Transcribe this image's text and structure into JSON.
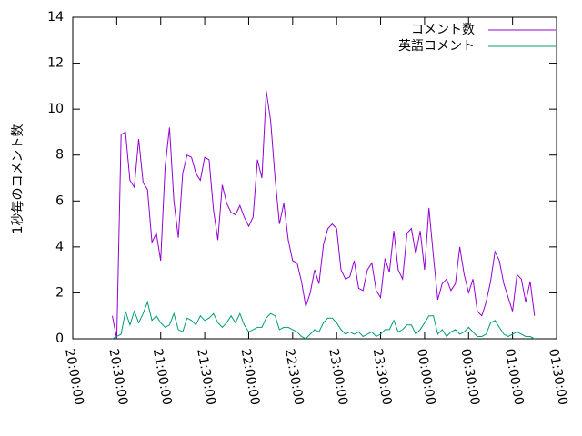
{
  "chart_data": {
    "type": "line",
    "ylabel": "1秒毎のコメント数",
    "x": [
      "20:27:00",
      "20:30:00",
      "20:33:00",
      "20:36:00",
      "20:39:00",
      "20:42:00",
      "20:45:00",
      "20:48:00",
      "20:51:00",
      "20:54:00",
      "20:57:00",
      "21:00:00",
      "21:03:00",
      "21:06:00",
      "21:09:00",
      "21:12:00",
      "21:15:00",
      "21:18:00",
      "21:21:00",
      "21:24:00",
      "21:27:00",
      "21:30:00",
      "21:33:00",
      "21:36:00",
      "21:39:00",
      "21:42:00",
      "21:45:00",
      "21:48:00",
      "21:51:00",
      "21:54:00",
      "21:57:00",
      "22:00:00",
      "22:03:00",
      "22:06:00",
      "22:09:00",
      "22:12:00",
      "22:15:00",
      "22:18:00",
      "22:21:00",
      "22:24:00",
      "22:27:00",
      "22:30:00",
      "22:33:00",
      "22:36:00",
      "22:39:00",
      "22:42:00",
      "22:45:00",
      "22:48:00",
      "22:51:00",
      "22:54:00",
      "22:57:00",
      "23:00:00",
      "23:03:00",
      "23:06:00",
      "23:09:00",
      "23:12:00",
      "23:15:00",
      "23:18:00",
      "23:21:00",
      "23:24:00",
      "23:27:00",
      "23:30:00",
      "23:33:00",
      "23:36:00",
      "23:39:00",
      "23:42:00",
      "23:45:00",
      "23:48:00",
      "23:51:00",
      "23:54:00",
      "23:57:00",
      "00:00:00",
      "00:03:00",
      "00:06:00",
      "00:09:00",
      "00:12:00",
      "00:15:00",
      "00:18:00",
      "00:21:00",
      "00:24:00",
      "00:27:00",
      "00:30:00",
      "00:33:00",
      "00:36:00",
      "00:39:00",
      "00:42:00",
      "00:45:00",
      "00:48:00",
      "00:51:00",
      "00:54:00",
      "00:57:00",
      "01:00:00",
      "01:03:00",
      "01:06:00",
      "01:09:00",
      "01:12:00",
      "01:15:00"
    ],
    "series": [
      {
        "name": "コメント数",
        "color": "#9400d3",
        "values": [
          1.0,
          0.0,
          8.9,
          9.0,
          6.9,
          6.6,
          8.7,
          6.8,
          6.5,
          4.2,
          4.6,
          3.4,
          7.5,
          9.2,
          6.0,
          4.4,
          7.2,
          8.0,
          7.9,
          7.2,
          6.9,
          7.9,
          7.8,
          5.6,
          4.3,
          6.7,
          5.9,
          5.5,
          5.4,
          5.8,
          5.3,
          4.9,
          5.3,
          7.8,
          7.0,
          10.8,
          9.5,
          7.0,
          5.0,
          5.9,
          4.3,
          3.4,
          3.3,
          2.5,
          1.4,
          2.0,
          3.0,
          2.4,
          4.1,
          4.8,
          5.0,
          4.8,
          3.0,
          2.6,
          2.7,
          3.4,
          2.2,
          2.1,
          3.0,
          3.3,
          2.1,
          1.8,
          3.5,
          2.9,
          4.7,
          3.0,
          2.6,
          4.6,
          4.8,
          3.7,
          4.7,
          3.0,
          5.7,
          3.6,
          1.7,
          2.4,
          2.6,
          2.1,
          2.4,
          4.0,
          2.8,
          2.0,
          2.6,
          1.2,
          1.0,
          1.6,
          2.5,
          3.8,
          3.4,
          2.4,
          1.8,
          1.2,
          2.8,
          2.6,
          1.6,
          2.5,
          1.0
        ]
      },
      {
        "name": "英語コメント",
        "color": "#009e73",
        "values": [
          0.0,
          0.1,
          0.2,
          1.2,
          0.6,
          1.2,
          0.7,
          1.1,
          1.6,
          0.8,
          1.0,
          0.7,
          0.5,
          0.6,
          1.1,
          0.4,
          0.3,
          0.9,
          0.8,
          0.6,
          1.0,
          0.8,
          0.9,
          1.1,
          0.7,
          0.5,
          0.7,
          1.0,
          0.7,
          1.1,
          0.6,
          0.3,
          0.4,
          0.5,
          0.5,
          0.9,
          1.1,
          1.0,
          0.4,
          0.5,
          0.5,
          0.4,
          0.3,
          0.1,
          0.0,
          0.2,
          0.4,
          0.3,
          0.7,
          0.9,
          0.9,
          0.7,
          0.4,
          0.2,
          0.3,
          0.2,
          0.3,
          0.1,
          0.2,
          0.3,
          0.1,
          0.2,
          0.4,
          0.4,
          0.8,
          0.3,
          0.4,
          0.6,
          0.6,
          0.2,
          0.4,
          0.7,
          1.0,
          1.0,
          0.2,
          0.4,
          0.1,
          0.3,
          0.4,
          0.2,
          0.3,
          0.5,
          0.3,
          0.1,
          0.1,
          0.2,
          0.7,
          0.8,
          0.5,
          0.2,
          0.1,
          0.2,
          0.3,
          0.2,
          0.1,
          0.1,
          0.0
        ]
      }
    ],
    "xlim": [
      "20:00:00",
      "01:30:00"
    ],
    "xticks": [
      "20:00:00",
      "20:30:00",
      "21:00:00",
      "21:30:00",
      "22:00:00",
      "22:30:00",
      "23:00:00",
      "23:30:00",
      "00:00:00",
      "00:30:00",
      "01:00:00",
      "01:30:00"
    ],
    "ylim": [
      0,
      14
    ],
    "yticks": [
      0,
      2,
      4,
      6,
      8,
      10,
      12,
      14
    ],
    "legend": "top-right"
  }
}
